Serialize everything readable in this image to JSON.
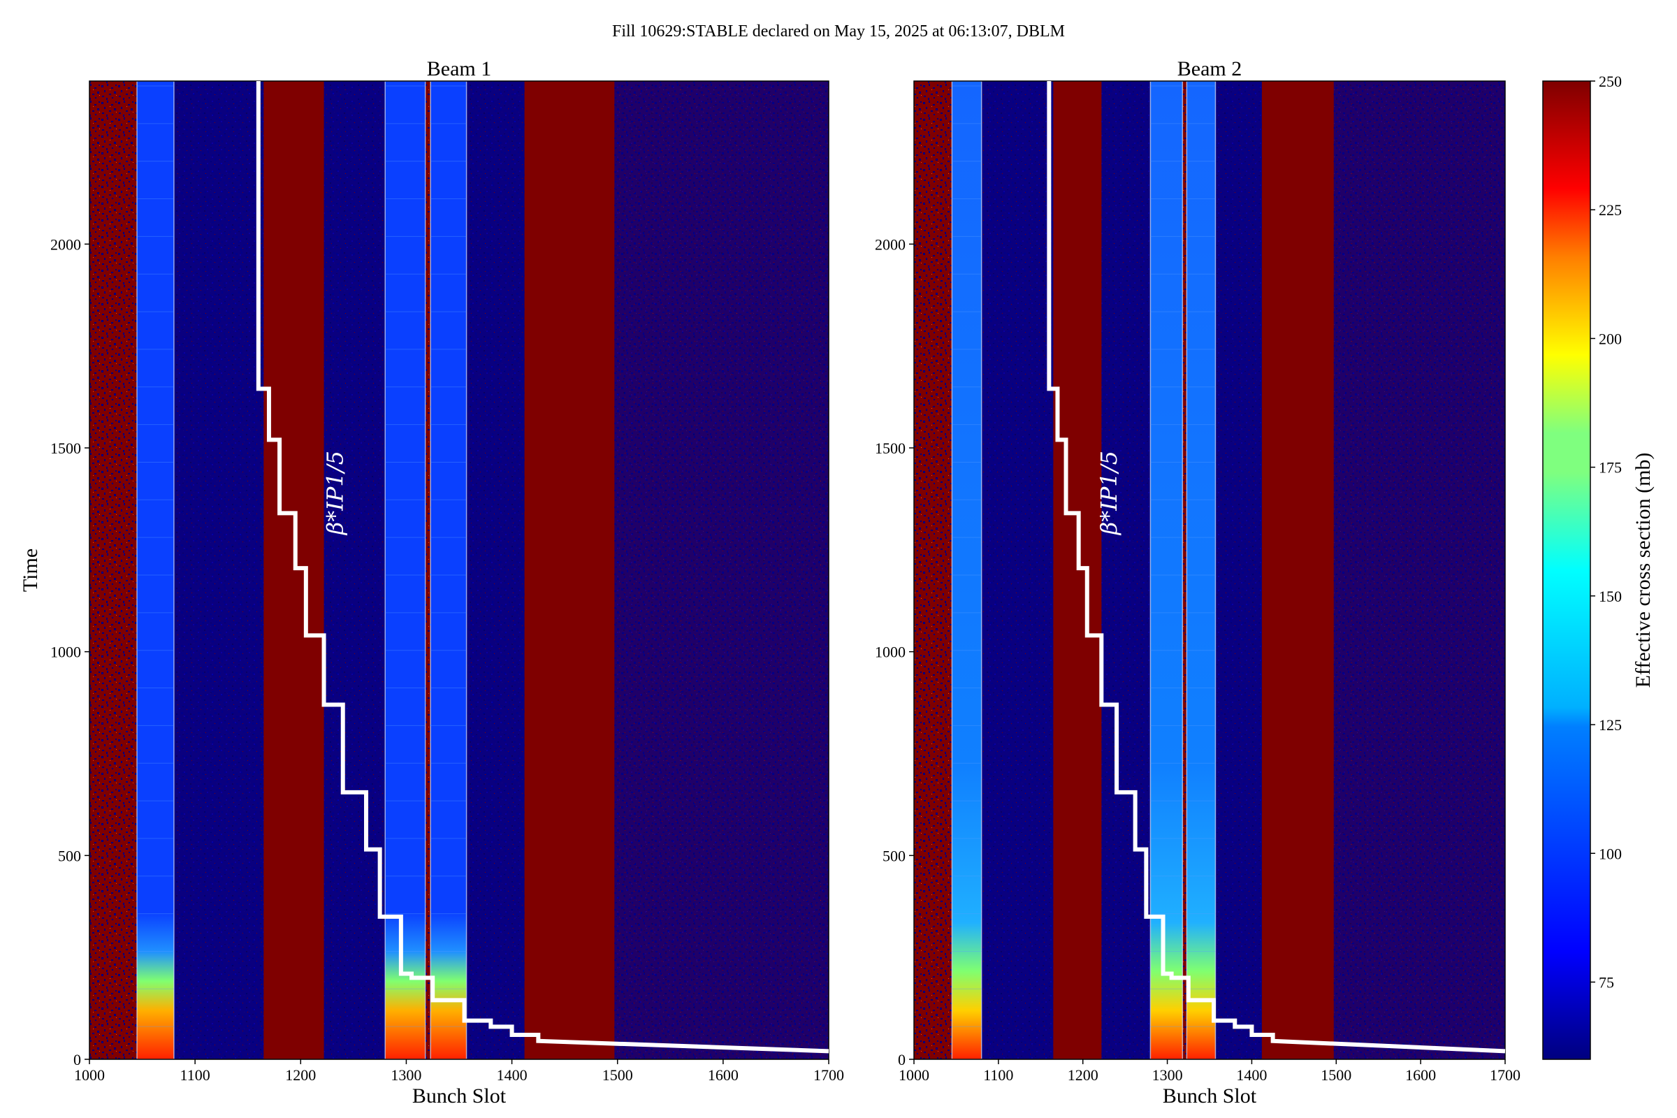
{
  "figure": {
    "suptitle": "Fill 10629:STABLE declared on May 15, 2025 at 06:13:07, DBLM"
  },
  "colorbar": {
    "label": "Effective cross section (mb)",
    "range": [
      60,
      250
    ],
    "ticks": [
      "75",
      "100",
      "125",
      "150",
      "175",
      "200",
      "225",
      "250"
    ],
    "tick_values": [
      75,
      100,
      125,
      150,
      175,
      200,
      225,
      250
    ],
    "colormap": "jet",
    "colors": [
      "#00007f",
      "#0000ff",
      "#007fff",
      "#00ffff",
      "#7fff7f",
      "#ffff00",
      "#ff7f00",
      "#ff0000",
      "#7f0000"
    ]
  },
  "chart_data": [
    {
      "type": "heatmap",
      "title": "Beam 1",
      "xlabel": "Bunch Slot",
      "ylabel": "Time",
      "xlim": [
        1000,
        1700
      ],
      "ylim": [
        0,
        2400
      ],
      "xticks": [
        "1000",
        "1100",
        "1200",
        "1300",
        "1400",
        "1500",
        "1600",
        "1700"
      ],
      "xtick_values": [
        1000,
        1100,
        1200,
        1300,
        1400,
        1500,
        1600,
        1700
      ],
      "yticks": [
        "0",
        "500",
        "1000",
        "1500",
        "2000"
      ],
      "ytick_values": [
        0,
        500,
        1000,
        1500,
        2000
      ],
      "filled_bunch_trains": [
        [
          1045,
          1080
        ],
        [
          1280,
          1318
        ],
        [
          1323,
          1357
        ]
      ],
      "saturated_regions": [
        [
          1165,
          1222
        ],
        [
          1412,
          1497
        ]
      ],
      "annotation": "β*IP1/5",
      "beta_star_curve": {
        "x": [
          1160,
          1160,
          1170,
          1170,
          1180,
          1180,
          1195,
          1195,
          1205,
          1205,
          1222,
          1222,
          1240,
          1240,
          1262,
          1262,
          1275,
          1275,
          1295,
          1295,
          1305,
          1305,
          1325,
          1325,
          1355,
          1355,
          1380,
          1380,
          1400,
          1400,
          1425,
          1425,
          1700
        ],
        "y": [
          2400,
          1645,
          1645,
          1520,
          1520,
          1340,
          1340,
          1205,
          1205,
          1040,
          1040,
          870,
          870,
          655,
          655,
          515,
          515,
          350,
          350,
          210,
          210,
          200,
          200,
          145,
          145,
          95,
          95,
          80,
          80,
          60,
          60,
          45,
          20
        ]
      }
    },
    {
      "type": "heatmap",
      "title": "Beam 2",
      "xlabel": "Bunch Slot",
      "ylabel": "",
      "xlim": [
        1000,
        1700
      ],
      "ylim": [
        0,
        2400
      ],
      "xticks": [
        "1000",
        "1100",
        "1200",
        "1300",
        "1400",
        "1500",
        "1600",
        "1700"
      ],
      "xtick_values": [
        1000,
        1100,
        1200,
        1300,
        1400,
        1500,
        1600,
        1700
      ],
      "yticks": [
        "0",
        "500",
        "1000",
        "1500",
        "2000"
      ],
      "ytick_values": [
        0,
        500,
        1000,
        1500,
        2000
      ],
      "filled_bunch_trains": [
        [
          1045,
          1080
        ],
        [
          1280,
          1318
        ],
        [
          1323,
          1357
        ]
      ],
      "saturated_regions": [
        [
          1165,
          1222
        ],
        [
          1412,
          1497
        ]
      ],
      "annotation": "β*IP1/5",
      "beta_star_curve": {
        "x": [
          1160,
          1160,
          1170,
          1170,
          1180,
          1180,
          1195,
          1195,
          1205,
          1205,
          1222,
          1222,
          1240,
          1240,
          1262,
          1262,
          1275,
          1275,
          1295,
          1295,
          1305,
          1305,
          1325,
          1325,
          1355,
          1355,
          1380,
          1380,
          1400,
          1400,
          1425,
          1425,
          1700
        ],
        "y": [
          2400,
          1645,
          1645,
          1520,
          1520,
          1340,
          1340,
          1205,
          1205,
          1040,
          1040,
          870,
          870,
          655,
          655,
          515,
          515,
          350,
          350,
          210,
          210,
          200,
          200,
          145,
          145,
          95,
          95,
          80,
          80,
          60,
          60,
          45,
          20
        ]
      }
    }
  ]
}
